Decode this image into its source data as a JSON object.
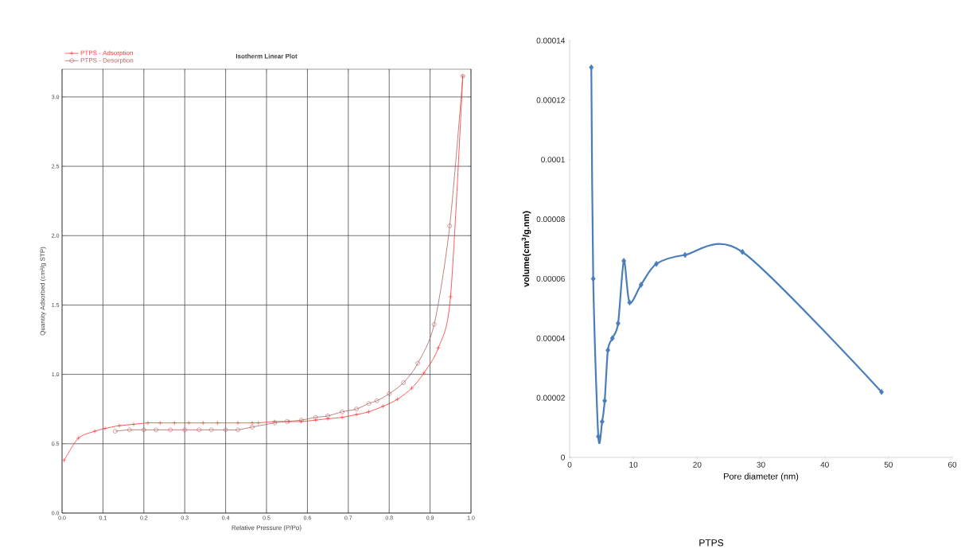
{
  "chart_data": [
    {
      "type": "line",
      "title": "Isotherm Linear Plot",
      "xlabel": "Relative Pressure (P/Po)",
      "ylabel": "Quantity Adsorbed (cm³/g STP)",
      "xlim": [
        0,
        1
      ],
      "ylim": [
        0,
        3.2
      ],
      "xticks": [
        {
          "value": 0,
          "label": "0.0"
        },
        {
          "value": 0.1,
          "label": "0.1"
        },
        {
          "value": 0.2,
          "label": "0.2"
        },
        {
          "value": 0.3,
          "label": "0.3"
        },
        {
          "value": 0.4,
          "label": "0.4"
        },
        {
          "value": 0.5,
          "label": "0.5"
        },
        {
          "value": 0.6,
          "label": "0.6"
        },
        {
          "value": 0.7,
          "label": "0.7"
        },
        {
          "value": 0.8,
          "label": "0.8"
        },
        {
          "value": 0.9,
          "label": "0.9"
        },
        {
          "value": 1,
          "label": "1.0"
        }
      ],
      "yticks": [
        {
          "value": 0,
          "label": "0.0"
        },
        {
          "value": 0.5,
          "label": "0.5"
        },
        {
          "value": 1,
          "label": "1.0"
        },
        {
          "value": 1.5,
          "label": "1.5"
        },
        {
          "value": 2,
          "label": "2.0"
        },
        {
          "value": 2.5,
          "label": "2.5"
        },
        {
          "value": 3,
          "label": "3.0"
        }
      ],
      "grid": true,
      "legend": "top left",
      "series": [
        {
          "name": "PTPS - Adsorption",
          "color": "#ff3333",
          "marker": "cross",
          "x": [
            0.005,
            0.04,
            0.08,
            0.105,
            0.14,
            0.175,
            0.21,
            0.24,
            0.275,
            0.31,
            0.345,
            0.38,
            0.43,
            0.465,
            0.48,
            0.52,
            0.555,
            0.585,
            0.62,
            0.65,
            0.685,
            0.72,
            0.75,
            0.785,
            0.82,
            0.855,
            0.885,
            0.92,
            0.95,
            0.98
          ],
          "values": [
            0.38,
            0.54,
            0.59,
            0.61,
            0.63,
            0.64,
            0.65,
            0.65,
            0.65,
            0.65,
            0.65,
            0.65,
            0.65,
            0.65,
            0.65,
            0.66,
            0.66,
            0.66,
            0.67,
            0.68,
            0.69,
            0.71,
            0.73,
            0.77,
            0.82,
            0.9,
            1.01,
            1.19,
            1.56,
            3.15
          ]
        },
        {
          "name": "PTPS - Desorption",
          "color": "#b06060",
          "marker": "circle",
          "x": [
            0.98,
            0.948,
            0.91,
            0.87,
            0.835,
            0.8,
            0.77,
            0.75,
            0.72,
            0.685,
            0.65,
            0.62,
            0.585,
            0.55,
            0.52,
            0.465,
            0.43,
            0.4,
            0.365,
            0.335,
            0.3,
            0.265,
            0.23,
            0.2,
            0.165,
            0.13
          ],
          "values": [
            3.15,
            2.07,
            1.36,
            1.08,
            0.94,
            0.86,
            0.81,
            0.79,
            0.75,
            0.73,
            0.7,
            0.69,
            0.67,
            0.66,
            0.65,
            0.62,
            0.6,
            0.6,
            0.6,
            0.6,
            0.6,
            0.6,
            0.6,
            0.6,
            0.6,
            0.59
          ]
        }
      ]
    },
    {
      "type": "line",
      "xlabel": "Pore diameter (nm)",
      "ylabel": "volume(cm$^{3}$/g.nm)",
      "annotations": [
        "PTPS"
      ],
      "xlim": [
        0,
        60
      ],
      "ylim": [
        0,
        0.00014
      ],
      "xticks": [
        0,
        10,
        20,
        30,
        40,
        50,
        60
      ],
      "yticks": [
        {
          "value": 0,
          "label": "0"
        },
        {
          "value": 2e-05,
          "label": "0.00002"
        },
        {
          "value": 4e-05,
          "label": "0.00004"
        },
        {
          "value": 6e-05,
          "label": "0.00006"
        },
        {
          "value": 8e-05,
          "label": "0.00008"
        },
        {
          "value": 0.0001,
          "label": "0.0001"
        },
        {
          "value": 0.00012,
          "label": "0.00012"
        },
        {
          "value": 0.00014,
          "label": "0.00014"
        }
      ],
      "marker": "diamond",
      "series": [
        {
          "color": "#4a7ebb",
          "x": [
            3.4,
            3.7,
            4.5,
            5.1,
            5.5,
            6.0,
            6.7,
            7.6,
            8.5,
            9.4,
            11.2,
            13.6,
            18.1,
            27.1,
            48.9
          ],
          "values": [
            0.000131,
            6e-05,
            7e-06,
            1.2e-05,
            1.9e-05,
            3.6e-05,
            4e-05,
            4.5e-05,
            6.6e-05,
            5.2e-05,
            5.8e-05,
            6.5e-05,
            6.8e-05,
            6.9e-05,
            2.2e-05
          ]
        }
      ]
    }
  ]
}
